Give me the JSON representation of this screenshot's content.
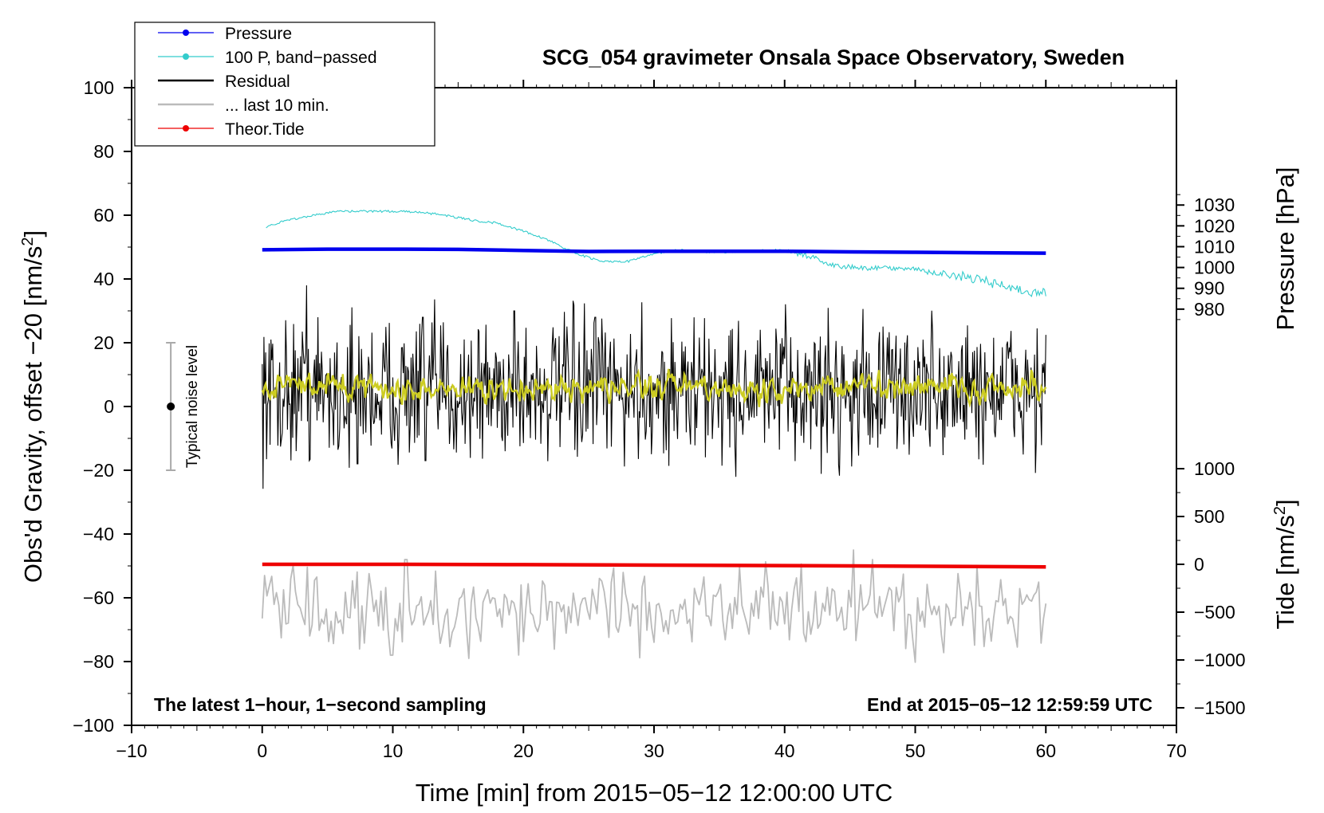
{
  "chart_data": {
    "type": "line",
    "title": "SCG_054 gravimeter Onsala Space Observatory, Sweden",
    "xlabel": "Time [min] from 2015−05−12 12:00:00 UTC",
    "ylabel_left": "Obs'd Gravity, offset −20 [nm/s",
    "ylabel_left_sup": "2",
    "ylabel_left_tail": "]",
    "ylabel_right_pressure": "Pressure [hPa]",
    "ylabel_right_tide": "Tide [nm/s",
    "ylabel_right_tide_sup": "2",
    "ylabel_right_tide_tail": "]",
    "note_left": "The latest 1−hour, 1−second sampling",
    "note_right": "End at 2015−05−12 12:59:59 UTC",
    "noise_label": "Typical noise level",
    "noise_range": [
      -20,
      20
    ],
    "noise_center": 0,
    "noise_x": -7,
    "xlim": [
      -10,
      70
    ],
    "ylim_left": [
      -100,
      100
    ],
    "x_ticks": [
      {
        "v": -10,
        "l": "−10"
      },
      {
        "v": 0,
        "l": "0"
      },
      {
        "v": 10,
        "l": "10"
      },
      {
        "v": 20,
        "l": "20"
      },
      {
        "v": 30,
        "l": "30"
      },
      {
        "v": 40,
        "l": "40"
      },
      {
        "v": 50,
        "l": "50"
      },
      {
        "v": 60,
        "l": "60"
      },
      {
        "v": 70,
        "l": "70"
      }
    ],
    "y_left_ticks": [
      {
        "v": 100,
        "l": "100"
      },
      {
        "v": 80,
        "l": "80"
      },
      {
        "v": 60,
        "l": "60"
      },
      {
        "v": 40,
        "l": "40"
      },
      {
        "v": 20,
        "l": "20"
      },
      {
        "v": 0,
        "l": "0"
      },
      {
        "v": -20,
        "l": "−20"
      },
      {
        "v": -40,
        "l": "−40"
      },
      {
        "v": -60,
        "l": "−60"
      },
      {
        "v": -80,
        "l": "−80"
      },
      {
        "v": -100,
        "l": "−100"
      }
    ],
    "pressure_axis": {
      "ref_value": 1000,
      "ref_left": 43.6,
      "units_per_left": 0.653,
      "ticks": [
        {
          "v": 1030,
          "l": "1030"
        },
        {
          "v": 1020,
          "l": "1020"
        },
        {
          "v": 1010,
          "l": "1010"
        },
        {
          "v": 1000,
          "l": "1000"
        },
        {
          "v": 990,
          "l": "990"
        },
        {
          "v": 980,
          "l": "980"
        }
      ]
    },
    "tide_axis": {
      "ref_value": 0,
      "ref_left": -49.5,
      "units_per_left": 0.03,
      "ticks": [
        {
          "v": 1000,
          "l": "1000"
        },
        {
          "v": 500,
          "l": "500"
        },
        {
          "v": 0,
          "l": "0"
        },
        {
          "v": -500,
          "l": "−500"
        },
        {
          "v": -1000,
          "l": "−1000"
        },
        {
          "v": -1500,
          "l": "−1500"
        }
      ]
    },
    "legend": [
      {
        "label": "Pressure",
        "color": "#0000ee",
        "marker": true
      },
      {
        "label": "100 P, band−passed",
        "color": "#33cccc",
        "marker": true
      },
      {
        "label": "Residual",
        "color": "#000000",
        "marker": false
      },
      {
        "label": "... last 10 min.",
        "color": "#bbbbbb",
        "marker": false
      },
      {
        "label": "Theor.Tide",
        "color": "#ee0000",
        "marker": true
      }
    ],
    "series": [
      {
        "name": "Pressure",
        "color": "#0000ee",
        "axis": "pressure_hPa",
        "x": [
          0,
          5,
          10,
          15,
          20,
          25,
          30,
          35,
          40,
          45,
          50,
          55,
          60
        ],
        "values": [
          1008.5,
          1008.8,
          1008.8,
          1008.7,
          1008.2,
          1007.7,
          1007.8,
          1007.8,
          1007.8,
          1007.5,
          1007.3,
          1007.1,
          1006.9
        ]
      },
      {
        "name": "100 P, band−passed",
        "color": "#33cccc",
        "axis": "left",
        "x": [
          0,
          2,
          4,
          6,
          8,
          10,
          12,
          14,
          16,
          18,
          20,
          22,
          24,
          26,
          28,
          30,
          32,
          34,
          36,
          38,
          40,
          42,
          44,
          46,
          48,
          50,
          52,
          54,
          56,
          58,
          60
        ],
        "values": [
          56,
          58.5,
          60,
          61.3,
          61.2,
          61.2,
          61,
          60,
          58.5,
          57.5,
          55,
          52,
          48,
          45.5,
          45.5,
          48,
          49.2,
          48.5,
          48.5,
          49,
          49,
          47,
          44,
          43.5,
          43.5,
          43,
          41.5,
          40.5,
          38.5,
          36.5,
          35.5
        ]
      },
      {
        "name": "Residual",
        "color": "#000000",
        "axis": "left",
        "x_range": [
          0,
          60
        ],
        "mean": 5,
        "amplitude": 11,
        "spikes": [
          {
            "x": 3.4,
            "y": 38
          },
          {
            "x": 0.6,
            "y": -12
          },
          {
            "x": 7.3,
            "y": -18
          },
          {
            "x": 12.5,
            "y": -17
          },
          {
            "x": 19.3,
            "y": 30
          },
          {
            "x": 12.3,
            "y": 28
          },
          {
            "x": 25.5,
            "y": 28
          },
          {
            "x": 36.2,
            "y": -13
          }
        ]
      },
      {
        "name": "Residual (smoothed)",
        "color": "#cccc22",
        "axis": "left",
        "x_range": [
          0,
          60
        ],
        "mean": 6,
        "amplitude": 4
      },
      {
        "name": "... last 10 min.",
        "color": "#bbbbbb",
        "axis": "left",
        "x_range": [
          0,
          60
        ],
        "mean": -64,
        "amplitude": 6,
        "spikes": [
          {
            "x": 9.9,
            "y": -78
          },
          {
            "x": 15.8,
            "y": -79
          },
          {
            "x": 45.2,
            "y": -45
          },
          {
            "x": 11,
            "y": -48
          },
          {
            "x": 46.8,
            "y": -48
          },
          {
            "x": 54.8,
            "y": -50
          }
        ]
      },
      {
        "name": "Theor.Tide",
        "color": "#ee0000",
        "axis": "tide_nm_s2",
        "x": [
          0,
          10,
          20,
          30,
          40,
          50,
          60
        ],
        "values": [
          0,
          0,
          -3,
          -8,
          -13,
          -20,
          -27
        ]
      }
    ]
  }
}
